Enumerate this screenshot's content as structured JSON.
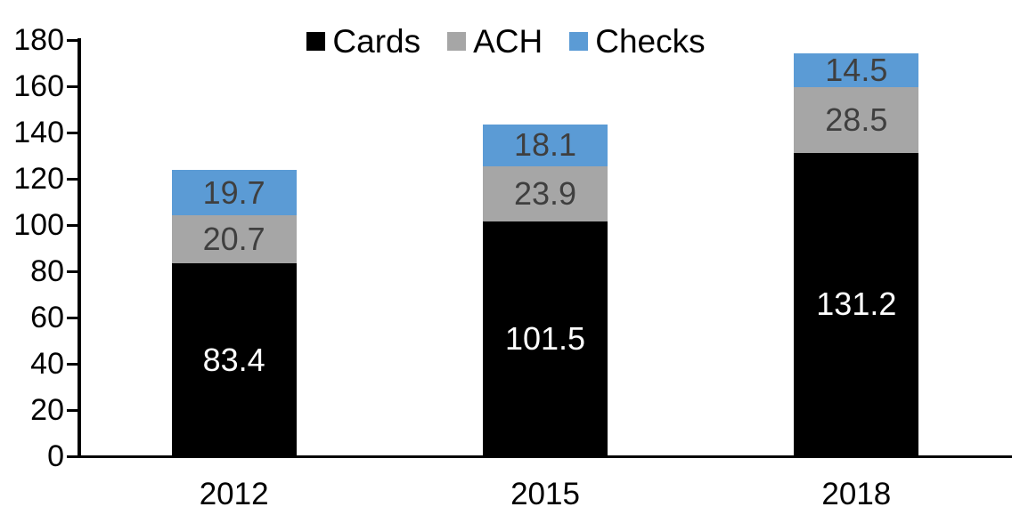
{
  "chart_data": {
    "type": "bar",
    "stacked": true,
    "title": "",
    "xlabel": "",
    "ylabel": "",
    "categories": [
      "2012",
      "2015",
      "2018"
    ],
    "series": [
      {
        "name": "Cards",
        "color": "#000000",
        "label_color": "#ffffff",
        "values": [
          83.4,
          101.5,
          131.2
        ]
      },
      {
        "name": "ACH",
        "color": "#a6a6a6",
        "label_color": "#3f3f3f",
        "values": [
          20.7,
          23.9,
          28.5
        ]
      },
      {
        "name": "Checks",
        "color": "#5b9bd5",
        "label_color": "#3f3f3f",
        "values": [
          19.7,
          18.1,
          14.5
        ]
      }
    ],
    "ylim": [
      0,
      180
    ],
    "ytick_step": 20,
    "ytick_labels": [
      "0",
      "20",
      "40",
      "60",
      "80",
      "100",
      "120",
      "140",
      "160",
      "180"
    ],
    "legend_position": "top",
    "grid": false,
    "axis_color": "#000000",
    "background_color": "#ffffff"
  }
}
